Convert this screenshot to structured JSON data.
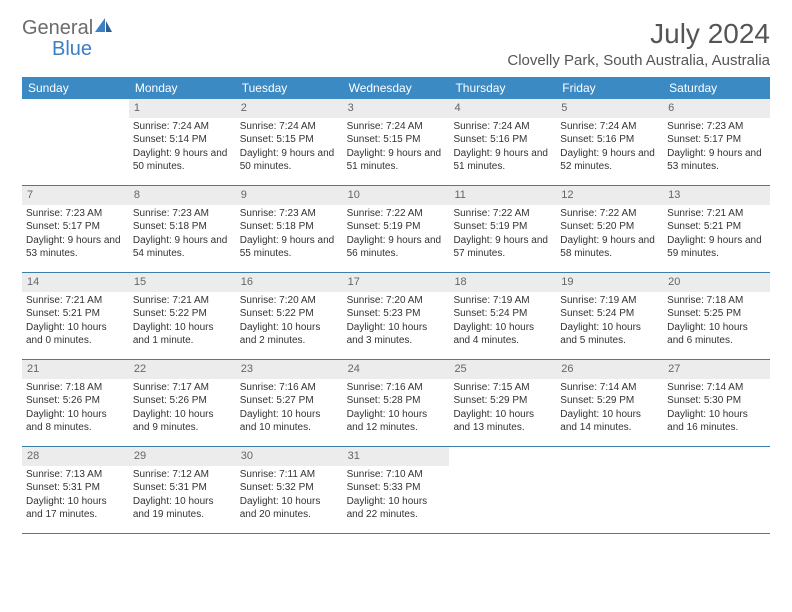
{
  "logo": {
    "text1": "General",
    "text2": "Blue"
  },
  "title": "July 2024",
  "location": "Clovelly Park, South Australia, Australia",
  "colors": {
    "header_bg": "#3b8ac4",
    "header_text": "#ffffff",
    "daynum_bg": "#ececec",
    "daynum_text": "#666666",
    "body_text": "#333333",
    "rule": "#3b7fa8",
    "title_text": "#555555"
  },
  "weekdays": [
    "Sunday",
    "Monday",
    "Tuesday",
    "Wednesday",
    "Thursday",
    "Friday",
    "Saturday"
  ],
  "weeks": [
    [
      {
        "n": "",
        "lines": []
      },
      {
        "n": "1",
        "lines": [
          "Sunrise: 7:24 AM",
          "Sunset: 5:14 PM",
          "Daylight: 9 hours and 50 minutes."
        ]
      },
      {
        "n": "2",
        "lines": [
          "Sunrise: 7:24 AM",
          "Sunset: 5:15 PM",
          "Daylight: 9 hours and 50 minutes."
        ]
      },
      {
        "n": "3",
        "lines": [
          "Sunrise: 7:24 AM",
          "Sunset: 5:15 PM",
          "Daylight: 9 hours and 51 minutes."
        ]
      },
      {
        "n": "4",
        "lines": [
          "Sunrise: 7:24 AM",
          "Sunset: 5:16 PM",
          "Daylight: 9 hours and 51 minutes."
        ]
      },
      {
        "n": "5",
        "lines": [
          "Sunrise: 7:24 AM",
          "Sunset: 5:16 PM",
          "Daylight: 9 hours and 52 minutes."
        ]
      },
      {
        "n": "6",
        "lines": [
          "Sunrise: 7:23 AM",
          "Sunset: 5:17 PM",
          "Daylight: 9 hours and 53 minutes."
        ]
      }
    ],
    [
      {
        "n": "7",
        "lines": [
          "Sunrise: 7:23 AM",
          "Sunset: 5:17 PM",
          "Daylight: 9 hours and 53 minutes."
        ]
      },
      {
        "n": "8",
        "lines": [
          "Sunrise: 7:23 AM",
          "Sunset: 5:18 PM",
          "Daylight: 9 hours and 54 minutes."
        ]
      },
      {
        "n": "9",
        "lines": [
          "Sunrise: 7:23 AM",
          "Sunset: 5:18 PM",
          "Daylight: 9 hours and 55 minutes."
        ]
      },
      {
        "n": "10",
        "lines": [
          "Sunrise: 7:22 AM",
          "Sunset: 5:19 PM",
          "Daylight: 9 hours and 56 minutes."
        ]
      },
      {
        "n": "11",
        "lines": [
          "Sunrise: 7:22 AM",
          "Sunset: 5:19 PM",
          "Daylight: 9 hours and 57 minutes."
        ]
      },
      {
        "n": "12",
        "lines": [
          "Sunrise: 7:22 AM",
          "Sunset: 5:20 PM",
          "Daylight: 9 hours and 58 minutes."
        ]
      },
      {
        "n": "13",
        "lines": [
          "Sunrise: 7:21 AM",
          "Sunset: 5:21 PM",
          "Daylight: 9 hours and 59 minutes."
        ]
      }
    ],
    [
      {
        "n": "14",
        "lines": [
          "Sunrise: 7:21 AM",
          "Sunset: 5:21 PM",
          "Daylight: 10 hours and 0 minutes."
        ]
      },
      {
        "n": "15",
        "lines": [
          "Sunrise: 7:21 AM",
          "Sunset: 5:22 PM",
          "Daylight: 10 hours and 1 minute."
        ]
      },
      {
        "n": "16",
        "lines": [
          "Sunrise: 7:20 AM",
          "Sunset: 5:22 PM",
          "Daylight: 10 hours and 2 minutes."
        ]
      },
      {
        "n": "17",
        "lines": [
          "Sunrise: 7:20 AM",
          "Sunset: 5:23 PM",
          "Daylight: 10 hours and 3 minutes."
        ]
      },
      {
        "n": "18",
        "lines": [
          "Sunrise: 7:19 AM",
          "Sunset: 5:24 PM",
          "Daylight: 10 hours and 4 minutes."
        ]
      },
      {
        "n": "19",
        "lines": [
          "Sunrise: 7:19 AM",
          "Sunset: 5:24 PM",
          "Daylight: 10 hours and 5 minutes."
        ]
      },
      {
        "n": "20",
        "lines": [
          "Sunrise: 7:18 AM",
          "Sunset: 5:25 PM",
          "Daylight: 10 hours and 6 minutes."
        ]
      }
    ],
    [
      {
        "n": "21",
        "lines": [
          "Sunrise: 7:18 AM",
          "Sunset: 5:26 PM",
          "Daylight: 10 hours and 8 minutes."
        ]
      },
      {
        "n": "22",
        "lines": [
          "Sunrise: 7:17 AM",
          "Sunset: 5:26 PM",
          "Daylight: 10 hours and 9 minutes."
        ]
      },
      {
        "n": "23",
        "lines": [
          "Sunrise: 7:16 AM",
          "Sunset: 5:27 PM",
          "Daylight: 10 hours and 10 minutes."
        ]
      },
      {
        "n": "24",
        "lines": [
          "Sunrise: 7:16 AM",
          "Sunset: 5:28 PM",
          "Daylight: 10 hours and 12 minutes."
        ]
      },
      {
        "n": "25",
        "lines": [
          "Sunrise: 7:15 AM",
          "Sunset: 5:29 PM",
          "Daylight: 10 hours and 13 minutes."
        ]
      },
      {
        "n": "26",
        "lines": [
          "Sunrise: 7:14 AM",
          "Sunset: 5:29 PM",
          "Daylight: 10 hours and 14 minutes."
        ]
      },
      {
        "n": "27",
        "lines": [
          "Sunrise: 7:14 AM",
          "Sunset: 5:30 PM",
          "Daylight: 10 hours and 16 minutes."
        ]
      }
    ],
    [
      {
        "n": "28",
        "lines": [
          "Sunrise: 7:13 AM",
          "Sunset: 5:31 PM",
          "Daylight: 10 hours and 17 minutes."
        ]
      },
      {
        "n": "29",
        "lines": [
          "Sunrise: 7:12 AM",
          "Sunset: 5:31 PM",
          "Daylight: 10 hours and 19 minutes."
        ]
      },
      {
        "n": "30",
        "lines": [
          "Sunrise: 7:11 AM",
          "Sunset: 5:32 PM",
          "Daylight: 10 hours and 20 minutes."
        ]
      },
      {
        "n": "31",
        "lines": [
          "Sunrise: 7:10 AM",
          "Sunset: 5:33 PM",
          "Daylight: 10 hours and 22 minutes."
        ]
      },
      {
        "n": "",
        "lines": []
      },
      {
        "n": "",
        "lines": []
      },
      {
        "n": "",
        "lines": []
      }
    ]
  ]
}
